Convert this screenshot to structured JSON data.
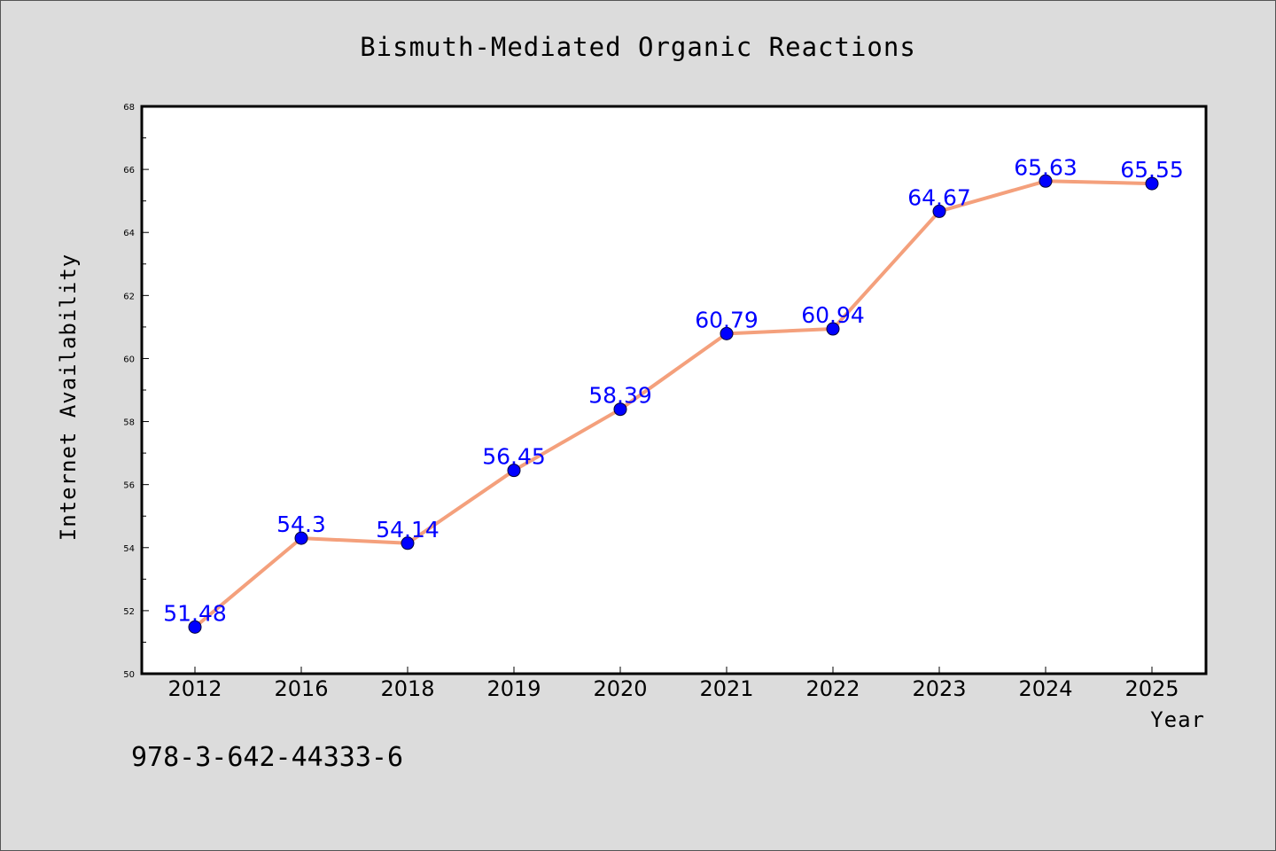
{
  "chart_data": {
    "type": "line",
    "title": "Bismuth-Mediated Organic Reactions",
    "xlabel": "Year",
    "ylabel": "Internet Availability",
    "categories": [
      "2012",
      "2016",
      "2018",
      "2019",
      "2020",
      "2021",
      "2022",
      "2023",
      "2024",
      "2025"
    ],
    "series": [
      {
        "values": [
          51.48,
          54.3,
          54.14,
          56.45,
          58.39,
          60.79,
          60.94,
          64.67,
          65.63,
          65.55
        ],
        "data_labels": [
          "51.48",
          "54.3",
          "54.14",
          "56.45",
          "58.39",
          "60.79",
          "60.94",
          "64.67",
          "65.63",
          "65.55"
        ]
      }
    ],
    "ylim": [
      50,
      68
    ],
    "y_ticks": [
      "50",
      "52",
      "54",
      "56",
      "58",
      "60",
      "62",
      "64",
      "66",
      "68"
    ],
    "grid": false,
    "legend": "none",
    "colors": {
      "line": "#f4a07c",
      "marker": "#0000ff",
      "data_label": "#0000ff",
      "background": "#dcdcdc",
      "plot_background": "#ffffff"
    }
  },
  "footer": {
    "isbn": "978-3-642-44333-6"
  }
}
